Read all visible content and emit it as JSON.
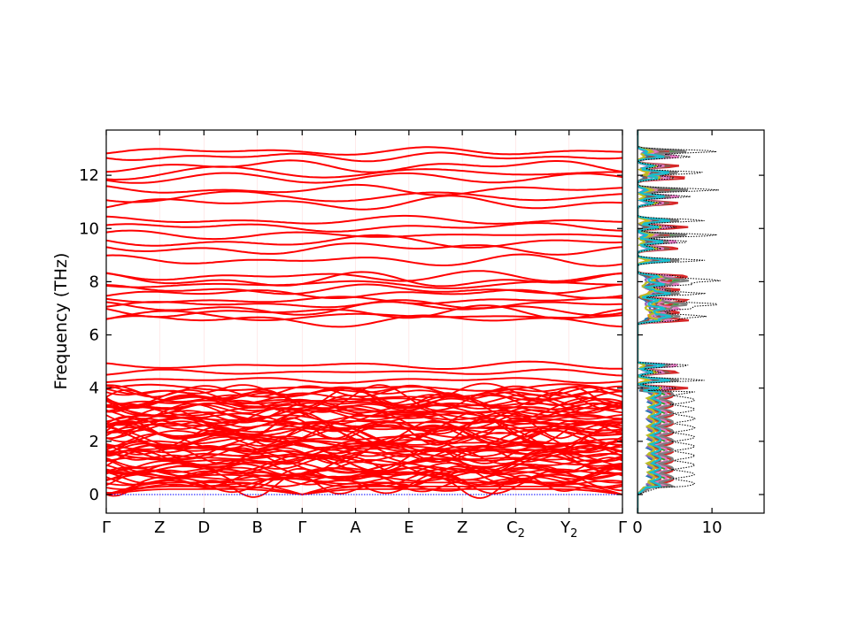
{
  "chart_data": [
    {
      "type": "line",
      "panel": "phonon-band-structure",
      "title": "",
      "xlabel": "",
      "ylabel": "Frequency (THz)",
      "ylim": [
        -0.7,
        13.7
      ],
      "y_ticks": [
        0,
        2,
        4,
        6,
        8,
        10,
        12
      ],
      "x_ticks": [
        {
          "label": "Γ",
          "sub": ""
        },
        {
          "label": "Z",
          "sub": ""
        },
        {
          "label": "D",
          "sub": ""
        },
        {
          "label": "B",
          "sub": ""
        },
        {
          "label": "Γ",
          "sub": ""
        },
        {
          "label": "A",
          "sub": ""
        },
        {
          "label": "E",
          "sub": ""
        },
        {
          "label": "Z",
          "sub": ""
        },
        {
          "label": "C",
          "sub": "2"
        },
        {
          "label": "Y",
          "sub": "2"
        },
        {
          "label": "Γ",
          "sub": ""
        }
      ],
      "x_tick_positions": [
        0,
        1,
        1.83,
        2.83,
        3.67,
        4.67,
        5.67,
        6.67,
        7.67,
        8.67,
        9.67
      ],
      "series_color": "#ff0000",
      "zero_line_color": "#0000ff",
      "upper_band_frequencies": [
        6.55,
        6.7,
        6.85,
        7.0,
        7.15,
        7.3,
        7.55,
        7.7,
        7.9,
        8.05,
        8.2,
        8.8,
        9.25,
        9.5,
        9.75,
        10.05,
        10.3,
        10.95,
        11.2,
        11.45,
        11.9,
        12.1,
        12.35,
        12.7,
        12.9
      ],
      "lower_band_top_frequencies": [
        4.0,
        4.3,
        4.6,
        4.85
      ],
      "lower_band_range": [
        0.3,
        3.9
      ],
      "acoustic_branches_max": 0.45,
      "grid": false
    },
    {
      "type": "line",
      "panel": "projected-dos",
      "title": "",
      "xlabel": "",
      "ylabel": "",
      "xlim": [
        0,
        17
      ],
      "x_ticks": [
        0,
        10
      ],
      "ylim": [
        -0.7,
        13.7
      ],
      "series_colors": [
        "#1f77b4",
        "#ff7f0e",
        "#2ca02c",
        "#d62728",
        "#9467bd",
        "#8c564b",
        "#e377c2",
        "#7f7f7f",
        "#bcbd22",
        "#17becf"
      ],
      "total_dos_color": "#000000",
      "grid": false
    }
  ]
}
